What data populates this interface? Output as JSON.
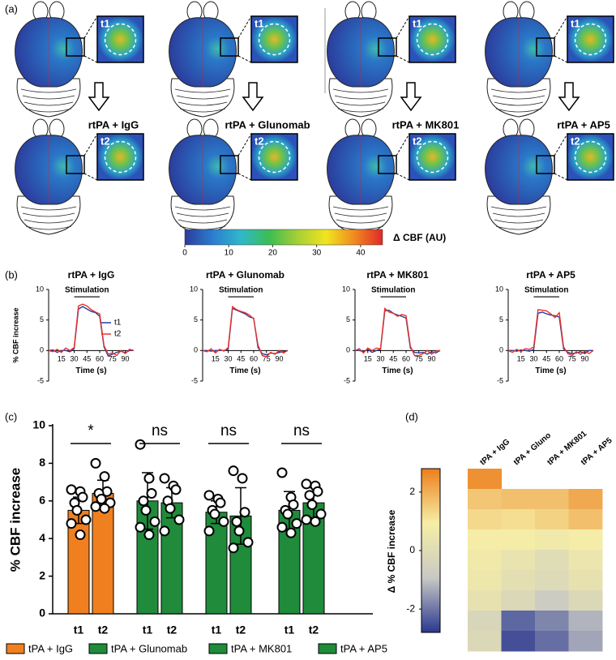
{
  "panel_labels": [
    "(a)",
    "(b)",
    "(c)",
    "(d)"
  ],
  "panel_a": {
    "conditions": [
      "rtPA + IgG",
      "rtPA + Glunomab",
      "rtPA + MK801",
      "rtPA + AP5"
    ],
    "time_labels": [
      "t1",
      "t2"
    ],
    "colorbar": {
      "label": "Δ CBF (AU)",
      "lim": [
        0,
        45
      ],
      "ticks": [
        0,
        10,
        20,
        30,
        40
      ],
      "colors": [
        "#2c3b9c",
        "#2b7fd0",
        "#30b8c9",
        "#3dbd52",
        "#a7cf35",
        "#f0e520",
        "#f08a20",
        "#e0282a"
      ]
    }
  },
  "chart_data": [
    {
      "type": "line",
      "title": "rtPA + IgG",
      "ylabel": "% CBF increase",
      "xlabel": "Time (s)",
      "annotation": "Stimulation",
      "annotation_span": [
        30,
        60
      ],
      "legend": "center-right",
      "x": [
        0,
        5,
        10,
        15,
        20,
        25,
        30,
        35,
        40,
        45,
        50,
        55,
        60,
        65,
        70,
        75,
        80,
        85,
        90,
        95,
        100
      ],
      "xlim": [
        0,
        100
      ],
      "xticks": [
        15,
        30,
        45,
        60,
        75,
        90
      ],
      "ylim": [
        -5,
        10
      ],
      "yticks": [
        -5,
        0,
        5,
        10
      ],
      "series": [
        {
          "name": "t1",
          "color": "#2b3a9a",
          "values": [
            0,
            0.1,
            -0.3,
            0,
            0,
            -0.2,
            0.3,
            6.8,
            7.2,
            6.8,
            6.4,
            6.2,
            5.6,
            0.6,
            -0.9,
            -0.6,
            -0.3,
            -0.1,
            -0.4,
            0,
            0
          ]
        },
        {
          "name": "t2",
          "color": "#e8322a",
          "values": [
            0,
            -0.2,
            0.2,
            -0.3,
            0.4,
            0,
            0.5,
            7.3,
            7.6,
            7.3,
            6.7,
            6.3,
            6.0,
            0.8,
            -0.6,
            -0.4,
            -0.8,
            0,
            -0.5,
            0.2,
            0
          ]
        }
      ]
    },
    {
      "type": "line",
      "title": "rtPA + Glunomab",
      "xlabel": "Time (s)",
      "annotation": "Stimulation",
      "annotation_span": [
        30,
        60
      ],
      "x": [
        0,
        5,
        10,
        15,
        20,
        25,
        30,
        35,
        40,
        45,
        50,
        55,
        60,
        65,
        70,
        75,
        80,
        85,
        90,
        95,
        100
      ],
      "xlim": [
        0,
        100
      ],
      "xticks": [
        15,
        30,
        45,
        60,
        75,
        90
      ],
      "ylim": [
        -5,
        10
      ],
      "yticks": [
        -5,
        0,
        5,
        10
      ],
      "series": [
        {
          "color": "#2b3a9a",
          "values": [
            0,
            0,
            -0.1,
            0,
            0,
            0,
            0.2,
            6.9,
            6.6,
            6.3,
            6.0,
            5.5,
            5.3,
            0.5,
            -0.5,
            -0.7,
            -0.4,
            -0.5,
            -0.3,
            -0.2,
            0
          ]
        },
        {
          "color": "#e8322a",
          "values": [
            0,
            -0.2,
            0.3,
            -0.4,
            0.2,
            -0.1,
            0.5,
            7.2,
            6.7,
            6.4,
            6.2,
            5.8,
            5.2,
            0.9,
            -0.8,
            -1.0,
            -0.3,
            -0.6,
            0,
            -0.4,
            0
          ]
        }
      ]
    },
    {
      "type": "line",
      "title": "rtPA + MK801",
      "xlabel": "Time (s)",
      "annotation": "Stimulation",
      "annotation_span": [
        30,
        60
      ],
      "x": [
        0,
        5,
        10,
        15,
        20,
        25,
        30,
        35,
        40,
        45,
        50,
        55,
        60,
        65,
        70,
        75,
        80,
        85,
        90,
        95,
        100
      ],
      "xlim": [
        0,
        100
      ],
      "xticks": [
        15,
        30,
        45,
        60,
        75,
        90
      ],
      "ylim": [
        -5,
        10
      ],
      "yticks": [
        -5,
        0,
        5,
        10
      ],
      "series": [
        {
          "color": "#2b3a9a",
          "values": [
            0,
            0,
            -0.2,
            0.2,
            -0.3,
            0,
            0.2,
            6.5,
            6.6,
            6.1,
            5.8,
            5.6,
            5.3,
            0.4,
            -0.3,
            -0.4,
            -0.3,
            -0.6,
            -0.2,
            -0.4,
            0
          ]
        },
        {
          "color": "#e8322a",
          "values": [
            0,
            0.3,
            -0.4,
            0.4,
            0,
            0.4,
            0.3,
            6.9,
            6.3,
            6.1,
            5.6,
            5.9,
            5.7,
            0.7,
            -0.8,
            -0.8,
            -0.5,
            0,
            -0.6,
            -0.1,
            0
          ]
        }
      ]
    },
    {
      "type": "line",
      "title": "rtPA + AP5",
      "xlabel": "Time (s)",
      "annotation": "Stimulation",
      "annotation_span": [
        30,
        60
      ],
      "x": [
        0,
        5,
        10,
        15,
        20,
        25,
        30,
        35,
        40,
        45,
        50,
        55,
        60,
        65,
        70,
        75,
        80,
        85,
        90,
        95,
        100
      ],
      "xlim": [
        0,
        100
      ],
      "xticks": [
        15,
        30,
        45,
        60,
        75,
        90
      ],
      "ylim": [
        -5,
        10
      ],
      "yticks": [
        -5,
        0,
        5,
        10
      ],
      "series": [
        {
          "color": "#2b3a9a",
          "values": [
            0,
            0,
            -0.1,
            0.1,
            0,
            -0.1,
            0.2,
            6.1,
            6.3,
            6.0,
            5.8,
            5.7,
            5.5,
            0.3,
            -0.3,
            -0.5,
            -0.4,
            -0.2,
            -0.5,
            0,
            0
          ]
        },
        {
          "color": "#e8322a",
          "values": [
            0,
            -0.3,
            0.2,
            -0.2,
            0.3,
            0.2,
            0.6,
            6.7,
            6.6,
            6.5,
            6.0,
            5.4,
            6.2,
            0.6,
            -0.5,
            -0.8,
            -0.2,
            -0.6,
            -0.1,
            -0.5,
            0
          ]
        }
      ]
    },
    {
      "type": "bar",
      "ylabel": "% CBF increase",
      "categories": [
        "t1",
        "t2"
      ],
      "ylim": [
        0,
        10
      ],
      "yticks": [
        0,
        2,
        4,
        6,
        8,
        10
      ],
      "legend": "bottom",
      "annotations": [
        "*",
        "ns",
        "ns",
        "ns"
      ],
      "series": [
        {
          "name": "tPA + IgG",
          "color": "#f0801f",
          "values": [
            5.5,
            6.4
          ],
          "errors": [
            0.7,
            0.7
          ],
          "points": [
            [
              6.6,
              6.5,
              6.2,
              5.9,
              5.5,
              5.0,
              4.8,
              4.2
            ],
            [
              8.0,
              7.3,
              6.5,
              6.4,
              6.1,
              5.9,
              5.7,
              5.6
            ]
          ]
        },
        {
          "name": "tPA + Glunomab",
          "color": "#1f8b3b",
          "values": [
            6.0,
            5.9
          ],
          "errors": [
            1.5,
            0.8
          ],
          "points": [
            [
              9.0,
              7.2,
              6.4,
              6.0,
              5.5,
              4.9,
              4.6,
              4.2
            ],
            [
              7.2,
              6.8,
              6.6,
              6.0,
              5.6,
              5.0,
              4.4
            ]
          ]
        },
        {
          "name": "tPA + MK801",
          "color": "#1f8b3b",
          "values": [
            5.4,
            5.2
          ],
          "errors": [
            0.6,
            1.5
          ],
          "points": [
            [
              6.3,
              6.1,
              5.9,
              5.5,
              5.3,
              4.9,
              4.4
            ],
            [
              7.6,
              7.2,
              5.4,
              4.9,
              4.4,
              3.8,
              3.5
            ]
          ]
        },
        {
          "name": "tPA + AP5",
          "color": "#1f8b3b",
          "values": [
            5.5,
            5.9
          ],
          "errors": [
            1.0,
            0.8
          ],
          "points": [
            [
              7.5,
              6.2,
              5.8,
              5.5,
              5.3,
              4.8,
              4.6,
              4.3
            ],
            [
              6.9,
              6.8,
              6.5,
              6.3,
              5.8,
              5.3,
              5.0,
              4.9
            ]
          ]
        }
      ]
    },
    {
      "type": "heatmap",
      "ylabel": "Δ % CBF increase",
      "columns": [
        "tPA + IgG",
        "tPA + Gluno",
        "tPA + MK801",
        "tPA + AP5"
      ],
      "values": [
        [
          2.5,
          null,
          null,
          null
        ],
        [
          1.6,
          1.7,
          1.7,
          2.1
        ],
        [
          1.3,
          1.2,
          1.4,
          1.7
        ],
        [
          0.9,
          0.9,
          0.7,
          0.9
        ],
        [
          0.7,
          0.4,
          0.0,
          0.5
        ],
        [
          0.6,
          0.2,
          -0.1,
          0.3
        ],
        [
          0.3,
          -0.2,
          -0.8,
          -0.2
        ],
        [
          -0.3,
          -2.2,
          -1.8,
          -1.2
        ],
        [
          -0.2,
          -2.5,
          -2.1,
          -1.4
        ]
      ],
      "vlim": [
        -2.8,
        2.8
      ],
      "ticks": [
        -2,
        0,
        2
      ],
      "colormap": [
        "#2a3890",
        "#c9c9c4",
        "#f6eea6",
        "#ec7f1c"
      ]
    }
  ]
}
